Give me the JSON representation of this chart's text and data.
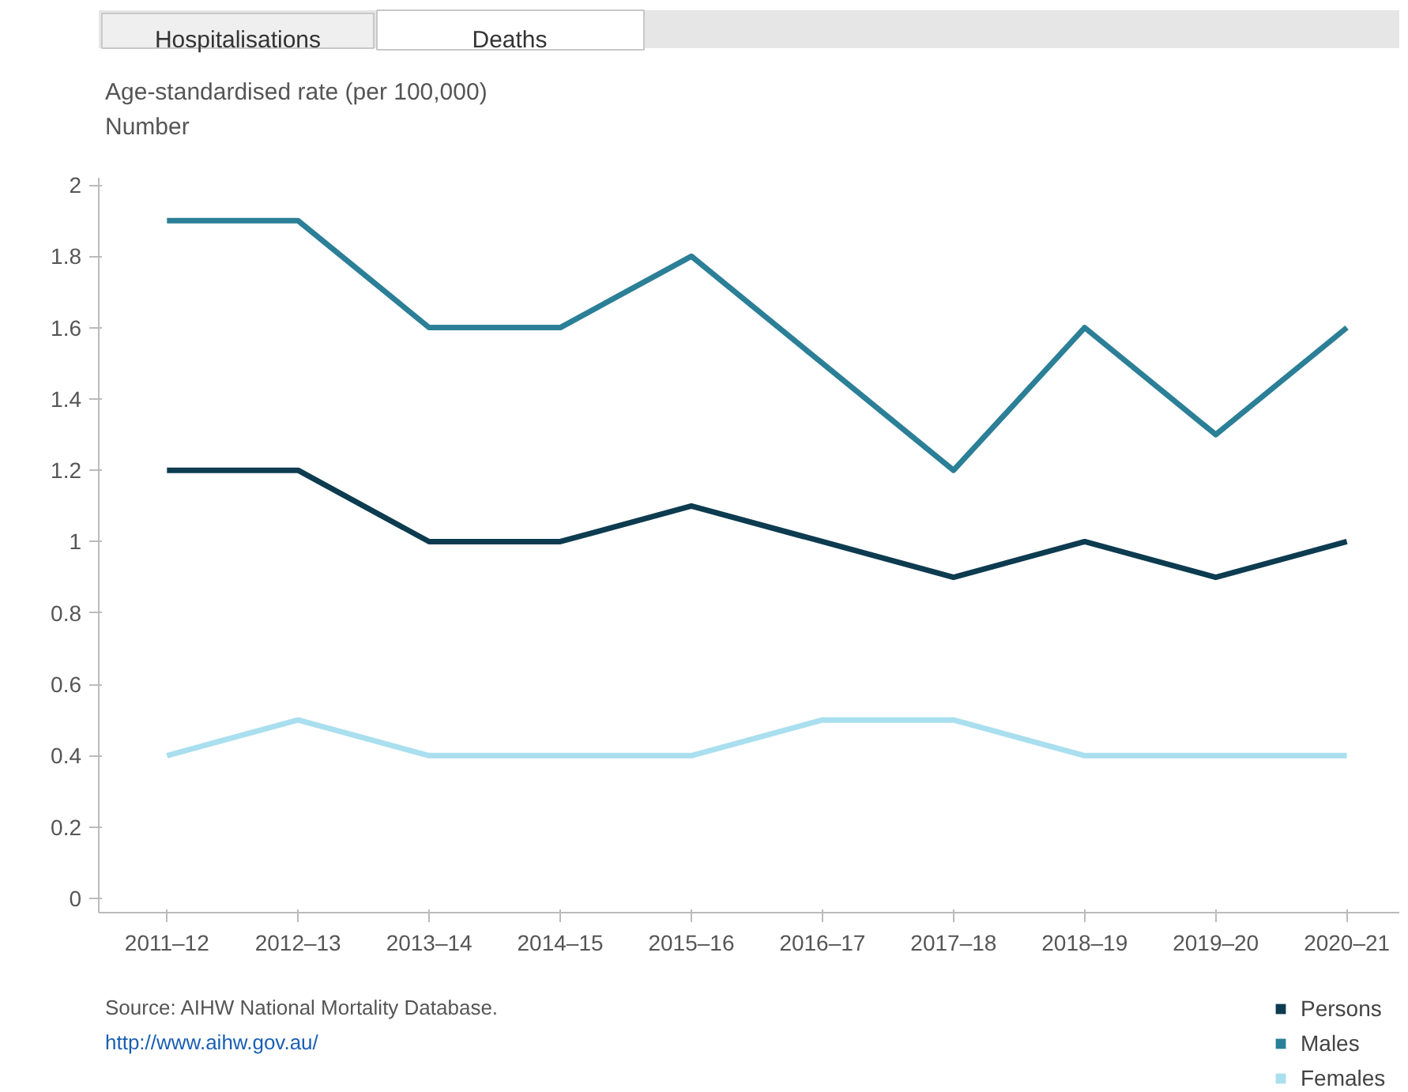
{
  "chart_data": {
    "type": "line",
    "categories": [
      "2011–12",
      "2012–13",
      "2013–14",
      "2014–15",
      "2015–16",
      "2016–17",
      "2017–18",
      "2018–19",
      "2019–20",
      "2020–21"
    ],
    "series": [
      {
        "name": "Persons",
        "color": "#0d3b50",
        "values": [
          1.2,
          1.2,
          1.0,
          1.0,
          1.1,
          1.0,
          0.9,
          1.0,
          0.9,
          1.0
        ]
      },
      {
        "name": "Males",
        "color": "#2b7f97",
        "values": [
          1.9,
          1.9,
          1.6,
          1.6,
          1.8,
          1.5,
          1.2,
          1.6,
          1.3,
          1.6
        ]
      },
      {
        "name": "Females",
        "color": "#a9dfee",
        "values": [
          0.4,
          0.5,
          0.4,
          0.4,
          0.4,
          0.5,
          0.5,
          0.4,
          0.4,
          0.4
        ]
      }
    ],
    "ylim": [
      -0.04,
      2.02
    ],
    "yticks": [
      0,
      0.2,
      0.4,
      0.6,
      0.8,
      1,
      1.2,
      1.4,
      1.6,
      1.8,
      2
    ],
    "grid": false,
    "legend": "bottom right",
    "marker": "none",
    "line_style": "solid",
    "annotations": [
      "Hospitalisations",
      "Deaths",
      "Age-standardised rate (per 100,000)",
      "Number",
      "Source: AIHW National Mortality Database.",
      "http://www.aihw.gov.au/"
    ]
  }
}
